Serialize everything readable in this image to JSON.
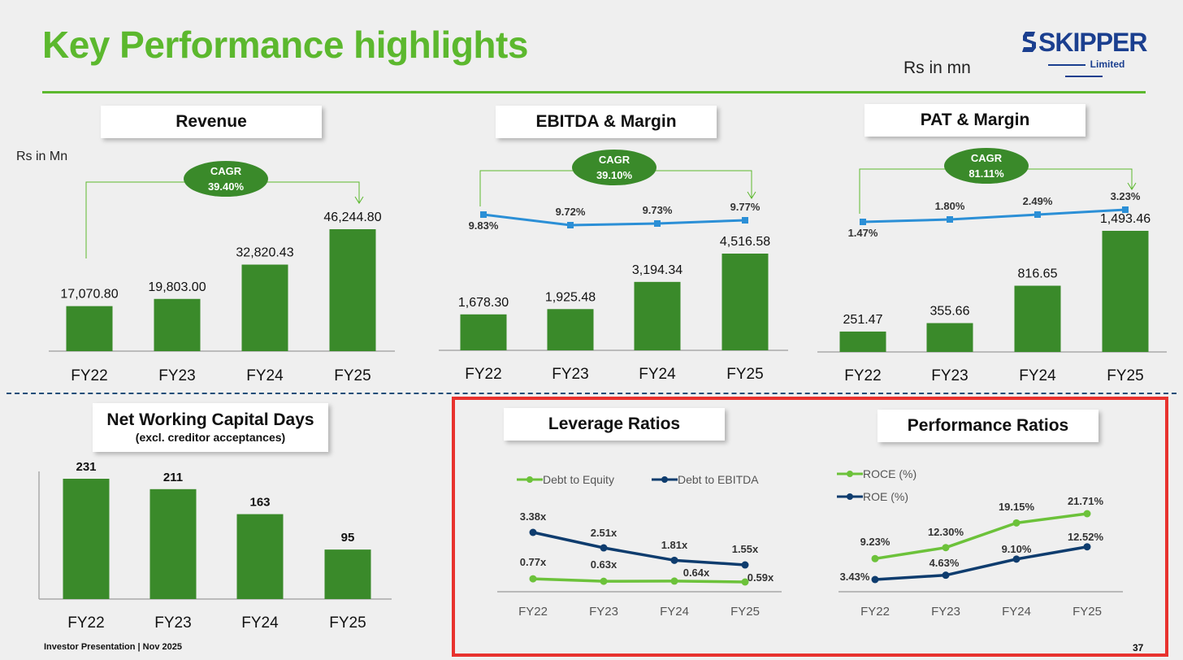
{
  "header": {
    "title": "Key Performance highlights",
    "units": "Rs in mn",
    "logo_word": "SKIPPER",
    "logo_sub": "Limited"
  },
  "colors": {
    "title_green": "#5cb82e",
    "bar_green": "#3a8a2a",
    "line_blue": "#2b8fd6",
    "line_green": "#6cc23a",
    "line_navy": "#0e3c6e",
    "highlight": "#e8322e"
  },
  "rs_in_mn": "Rs in Mn",
  "footer": {
    "text": "Investor Presentation | Nov 2025",
    "page": "37"
  },
  "chart_data": [
    {
      "id": "revenue",
      "type": "bar",
      "title": "Revenue",
      "categories": [
        "FY22",
        "FY23",
        "FY24",
        "FY25"
      ],
      "values": [
        17070.8,
        19803.0,
        32820.43,
        46244.8
      ],
      "value_labels": [
        "17,070.80",
        "19,803.00",
        "32,820.43",
        "46,244.80"
      ],
      "cagr_label": "CAGR",
      "cagr_value": "39.40%"
    },
    {
      "id": "ebitda",
      "type": "bar+line",
      "title": "EBITDA & Margin",
      "categories": [
        "FY22",
        "FY23",
        "FY24",
        "FY25"
      ],
      "values": [
        1678.3,
        1925.48,
        3194.34,
        4516.58
      ],
      "value_labels": [
        "1,678.30",
        "1,925.48",
        "3,194.34",
        "4,516.58"
      ],
      "margin": [
        9.83,
        9.72,
        9.73,
        9.77
      ],
      "margin_labels": [
        "9.83%",
        "9.72%",
        "9.73%",
        "9.77%"
      ],
      "cagr_label": "CAGR",
      "cagr_value": "39.10%"
    },
    {
      "id": "pat",
      "type": "bar+line",
      "title": "PAT & Margin",
      "categories": [
        "FY22",
        "FY23",
        "FY24",
        "FY25"
      ],
      "values": [
        251.47,
        355.66,
        816.65,
        1493.46
      ],
      "value_labels": [
        "251.47",
        "355.66",
        "816.65",
        "1,493.46"
      ],
      "margin": [
        1.47,
        1.8,
        2.49,
        3.23
      ],
      "margin_labels": [
        "1.47%",
        "1.80%",
        "2.49%",
        "3.23%"
      ],
      "cagr_label": "CAGR",
      "cagr_value": "81.11%"
    },
    {
      "id": "nwc",
      "type": "bar",
      "title": "Net Working Capital Days",
      "subtitle": "(excl. creditor acceptances)",
      "categories": [
        "FY22",
        "FY23",
        "FY24",
        "FY25"
      ],
      "values": [
        231,
        211,
        163,
        95
      ],
      "value_labels": [
        "231",
        "211",
        "163",
        "95"
      ]
    },
    {
      "id": "leverage",
      "type": "line",
      "title": "Leverage Ratios",
      "categories": [
        "FY22",
        "FY23",
        "FY24",
        "FY25"
      ],
      "series": [
        {
          "name": "Debt to Equity",
          "values": [
            0.77,
            0.63,
            0.64,
            0.59
          ],
          "labels": [
            "0.77x",
            "0.63x",
            "0.64x",
            "0.59x"
          ]
        },
        {
          "name": "Debt to EBITDA",
          "values": [
            3.38,
            2.51,
            1.81,
            1.55
          ],
          "labels": [
            "3.38x",
            "2.51x",
            "1.81x",
            "1.55x"
          ]
        }
      ]
    },
    {
      "id": "performance",
      "type": "line",
      "title": "Performance Ratios",
      "categories": [
        "FY22",
        "FY23",
        "FY24",
        "FY25"
      ],
      "series": [
        {
          "name": "ROCE (%)",
          "values": [
            9.23,
            12.3,
            19.15,
            21.71
          ],
          "labels": [
            "9.23%",
            "12.30%",
            "19.15%",
            "21.71%"
          ]
        },
        {
          "name": "ROE (%)",
          "values": [
            3.43,
            4.63,
            9.1,
            12.52
          ],
          "labels": [
            "3.43%",
            "4.63%",
            "9.10%",
            "12.52%"
          ]
        }
      ]
    }
  ]
}
